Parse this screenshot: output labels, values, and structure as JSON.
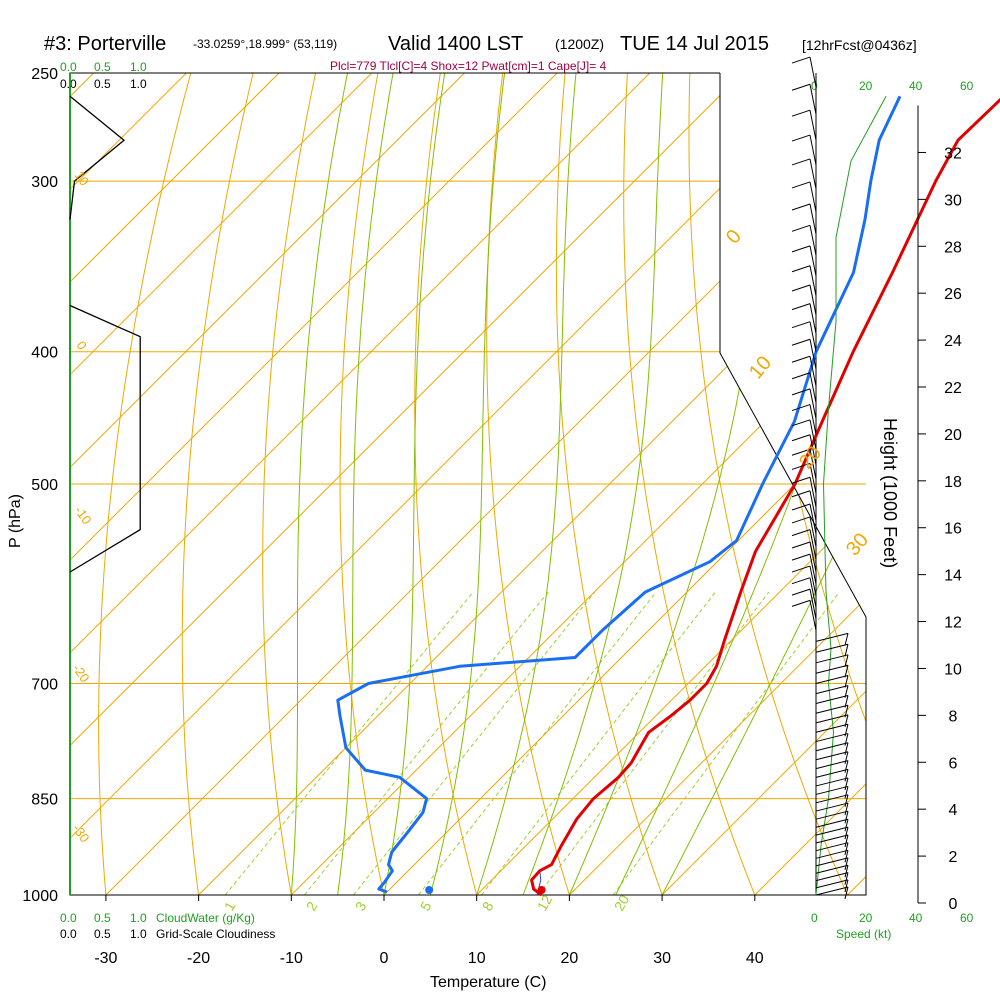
{
  "header": {
    "station": "#3: Porterville",
    "coords": "-33.0259°,18.999° (53,119)",
    "valid": "Valid 1400 LST",
    "zulu": "(1200Z)",
    "date": "TUE 14 Jul 2015",
    "fcst": "[12hrFcst@0436z]",
    "indices": "Plcl=779 Tlcl[C]=4 Shox=12 Pwat[cm]=1 Cape[J]= 4"
  },
  "colors": {
    "temperature": "#e00000",
    "dewpoint": "#1a6ef0",
    "isobar": "#f0a800",
    "adiabat": "#80c000",
    "mixing_ratio": "#a0d030",
    "cloud": "#20a020",
    "indices": "#a00040"
  },
  "chart_data": {
    "type": "line",
    "xlabel": "Temperature (C)",
    "ylabel": "P (hPa)",
    "right_label": "Height (1000 Feet)",
    "x_ticks": [
      "-30",
      "-20",
      "-10",
      "0",
      "10",
      "20",
      "30",
      "40"
    ],
    "p_ticks": [
      "250",
      "300",
      "400",
      "500",
      "700",
      "850",
      "1000"
    ],
    "height_ticks": [
      "0",
      "2",
      "4",
      "6",
      "8",
      "10",
      "12",
      "14",
      "16",
      "18",
      "20",
      "22",
      "24",
      "26",
      "28",
      "30",
      "32"
    ],
    "isotherm_labels": [
      "0",
      "10",
      "20",
      "30"
    ],
    "dry_adiabat_labels": [
      "10",
      "0",
      "-10",
      "-20",
      "-30"
    ],
    "mixing_ratio_labels": [
      "1",
      "2",
      "3",
      "5",
      "8",
      "12",
      "20"
    ],
    "cloud_scale_top": [
      "0.0",
      "0.5",
      "1.0"
    ],
    "cloud_scale_top2": [
      "0.0",
      "0.5",
      "1.0"
    ],
    "cloud_scale_bottom": [
      "0.0",
      "0.5",
      "1.0"
    ],
    "cloud_scale_bottom2": [
      "0.0",
      "0.5",
      "1.0"
    ],
    "cloud_water_label": "CloudWater (g/Kg)",
    "cloudiness_label": "Grid-Scale Cloudiness",
    "speed_ticks_top": [
      "0",
      "20",
      "40",
      "60"
    ],
    "speed_ticks_bottom": [
      "0",
      "20",
      "40",
      "60"
    ],
    "speed_label": "Speed (kt)",
    "temperature_profile": [
      {
        "p": 1000,
        "t": 17.0
      },
      {
        "p": 990,
        "t": 15.5
      },
      {
        "p": 975,
        "t": 14.3
      },
      {
        "p": 960,
        "t": 14.2
      },
      {
        "p": 950,
        "t": 14.8
      },
      {
        "p": 920,
        "t": 13.8
      },
      {
        "p": 880,
        "t": 12.6
      },
      {
        "p": 850,
        "t": 12.2
      },
      {
        "p": 820,
        "t": 12.6
      },
      {
        "p": 800,
        "t": 12.4
      },
      {
        "p": 780,
        "t": 11.7
      },
      {
        "p": 760,
        "t": 11.0
      },
      {
        "p": 740,
        "t": 11.6
      },
      {
        "p": 720,
        "t": 12.0
      },
      {
        "p": 700,
        "t": 12.0
      },
      {
        "p": 680,
        "t": 11.2
      },
      {
        "p": 650,
        "t": 9.2
      },
      {
        "p": 600,
        "t": 5.8
      },
      {
        "p": 560,
        "t": 3.0
      },
      {
        "p": 500,
        "t": 0.0
      },
      {
        "p": 450,
        "t": -3.8
      },
      {
        "p": 400,
        "t": -8.0
      },
      {
        "p": 350,
        "t": -12.3
      },
      {
        "p": 300,
        "t": -17.5
      },
      {
        "p": 280,
        "t": -19.5
      },
      {
        "p": 260,
        "t": -19.3
      }
    ],
    "dewpoint_profile": [
      {
        "p": 995,
        "t": 0.0
      },
      {
        "p": 990,
        "t": -1.2
      },
      {
        "p": 980,
        "t": -1.3
      },
      {
        "p": 960,
        "t": -1.7
      },
      {
        "p": 950,
        "t": -2.8
      },
      {
        "p": 930,
        "t": -3.8
      },
      {
        "p": 900,
        "t": -4.2
      },
      {
        "p": 870,
        "t": -4.7
      },
      {
        "p": 850,
        "t": -5.8
      },
      {
        "p": 820,
        "t": -11.0
      },
      {
        "p": 810,
        "t": -15.5
      },
      {
        "p": 780,
        "t": -20.0
      },
      {
        "p": 740,
        "t": -24.0
      },
      {
        "p": 720,
        "t": -26.0
      },
      {
        "p": 700,
        "t": -24.5
      },
      {
        "p": 680,
        "t": -16.5
      },
      {
        "p": 670,
        "t": -5.0
      },
      {
        "p": 640,
        "t": -5.0
      },
      {
        "p": 600,
        "t": -4.5
      },
      {
        "p": 570,
        "t": -0.8
      },
      {
        "p": 550,
        "t": -0.2
      },
      {
        "p": 500,
        "t": -3.5
      },
      {
        "p": 450,
        "t": -6.8
      },
      {
        "p": 400,
        "t": -12.0
      },
      {
        "p": 350,
        "t": -16.5
      },
      {
        "p": 320,
        "t": -21.0
      },
      {
        "p": 300,
        "t": -24.5
      },
      {
        "p": 280,
        "t": -28.0
      },
      {
        "p": 260,
        "t": -30.5
      }
    ],
    "surface_dewpoint_marker": {
      "p": 1000,
      "t": 2.5
    },
    "surface_temperature_marker": {
      "p": 1000,
      "t": 17.0
    },
    "cloudiness_profile": [
      {
        "p": 260,
        "c": 0.0
      },
      {
        "p": 280,
        "c": 0.6
      },
      {
        "p": 300,
        "c": 0.05
      },
      {
        "p": 320,
        "c": 0.0
      },
      {
        "p": 370,
        "c": 0.0
      },
      {
        "p": 390,
        "c": 0.78
      },
      {
        "p": 540,
        "c": 0.78
      },
      {
        "p": 580,
        "c": 0.0
      }
    ],
    "wind_speed_profile": [
      {
        "p": 1000,
        "s": 0
      },
      {
        "p": 920,
        "s": 2
      },
      {
        "p": 850,
        "s": 5
      },
      {
        "p": 760,
        "s": 7
      },
      {
        "p": 700,
        "s": 5
      },
      {
        "p": 660,
        "s": 6
      },
      {
        "p": 600,
        "s": 4
      },
      {
        "p": 500,
        "s": 3
      },
      {
        "p": 440,
        "s": 5
      },
      {
        "p": 380,
        "s": 8
      },
      {
        "p": 330,
        "s": 8
      },
      {
        "p": 290,
        "s": 14
      },
      {
        "p": 260,
        "s": 28
      }
    ],
    "xlim": [
      -34,
      46
    ],
    "plim": [
      1000,
      250
    ]
  }
}
